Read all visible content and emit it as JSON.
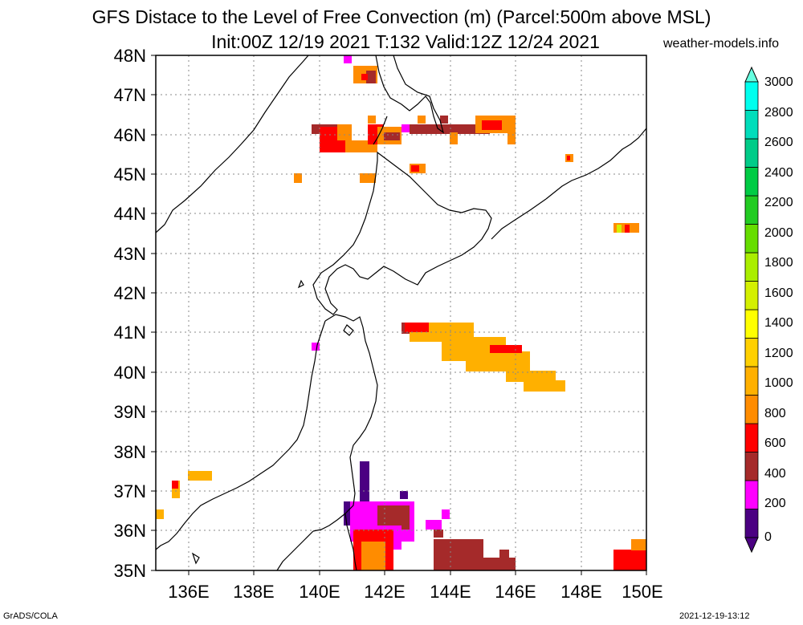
{
  "title": {
    "line1": "GFS Distace to the Level of Free Convection (m) (Parcel:500m above MSL)",
    "line2": "Init:00Z 12/19 2021 T:132 Valid:12Z 12/24 2021"
  },
  "site_label": "weather-models.info",
  "footer": {
    "left": "GrADS/COLA",
    "right": "2021-12-19-13:12"
  },
  "map": {
    "lon_range": [
      135,
      150
    ],
    "lat_range": [
      35,
      48
    ],
    "grid": "dotted",
    "lat_labels": [
      "48N",
      "47N",
      "46N",
      "45N",
      "44N",
      "43N",
      "42N",
      "41N",
      "40N",
      "39N",
      "38N",
      "37N",
      "36N",
      "35N"
    ],
    "lon_labels": [
      "136E",
      "138E",
      "140E",
      "142E",
      "144E",
      "146E",
      "148E",
      "150E"
    ]
  },
  "colorbar": {
    "levels": [
      "0",
      "200",
      "400",
      "600",
      "800",
      "1000",
      "1200",
      "1400",
      "1600",
      "1800",
      "2000",
      "2200",
      "2400",
      "2600",
      "2800",
      "3000"
    ],
    "colors": [
      "#4b0082",
      "#ff00ff",
      "#a52a2a",
      "#ff0000",
      "#ff8c00",
      "#ffb000",
      "#ffd000",
      "#ffff00",
      "#d4f000",
      "#aaee00",
      "#66dd00",
      "#22cc22",
      "#00cc44",
      "#00cc88",
      "#00ddbb",
      "#00ffee",
      "#66ffe0"
    ]
  }
}
